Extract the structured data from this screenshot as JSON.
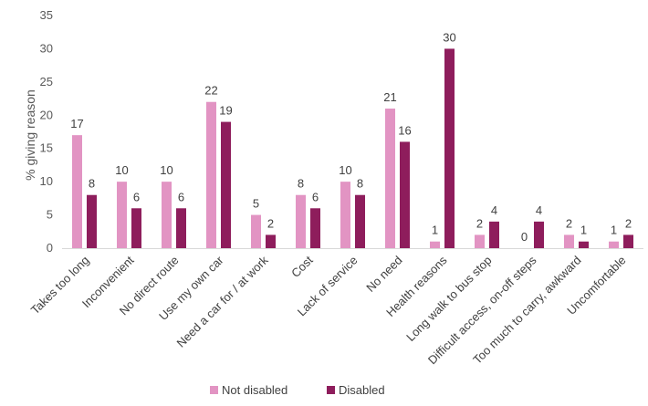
{
  "chart_data": {
    "type": "bar",
    "title": "",
    "xlabel": "",
    "ylabel": "% giving reason",
    "ylim": [
      0,
      35
    ],
    "yticks": [
      0,
      5,
      10,
      15,
      20,
      25,
      30,
      35
    ],
    "categories": [
      "Takes too long",
      "Inconvenient",
      "No direct route",
      "Use my own car",
      "Need a car for / at work",
      "Cost",
      "Lack of service",
      "No need",
      "Health reasons",
      "Long walk to bus stop",
      "Difficult access, on-off steps",
      "Too much to carry, awkward",
      "Uncomfortable"
    ],
    "series": [
      {
        "name": "Not disabled",
        "color": "#e294c3",
        "values": [
          17,
          10,
          10,
          22,
          5,
          8,
          10,
          21,
          1,
          2,
          0,
          2,
          1
        ]
      },
      {
        "name": "Disabled",
        "color": "#8e1d5c",
        "values": [
          8,
          6,
          6,
          19,
          2,
          6,
          8,
          16,
          30,
          4,
          4,
          1,
          2
        ]
      }
    ],
    "legend_position": "bottom-center",
    "grid": false
  }
}
